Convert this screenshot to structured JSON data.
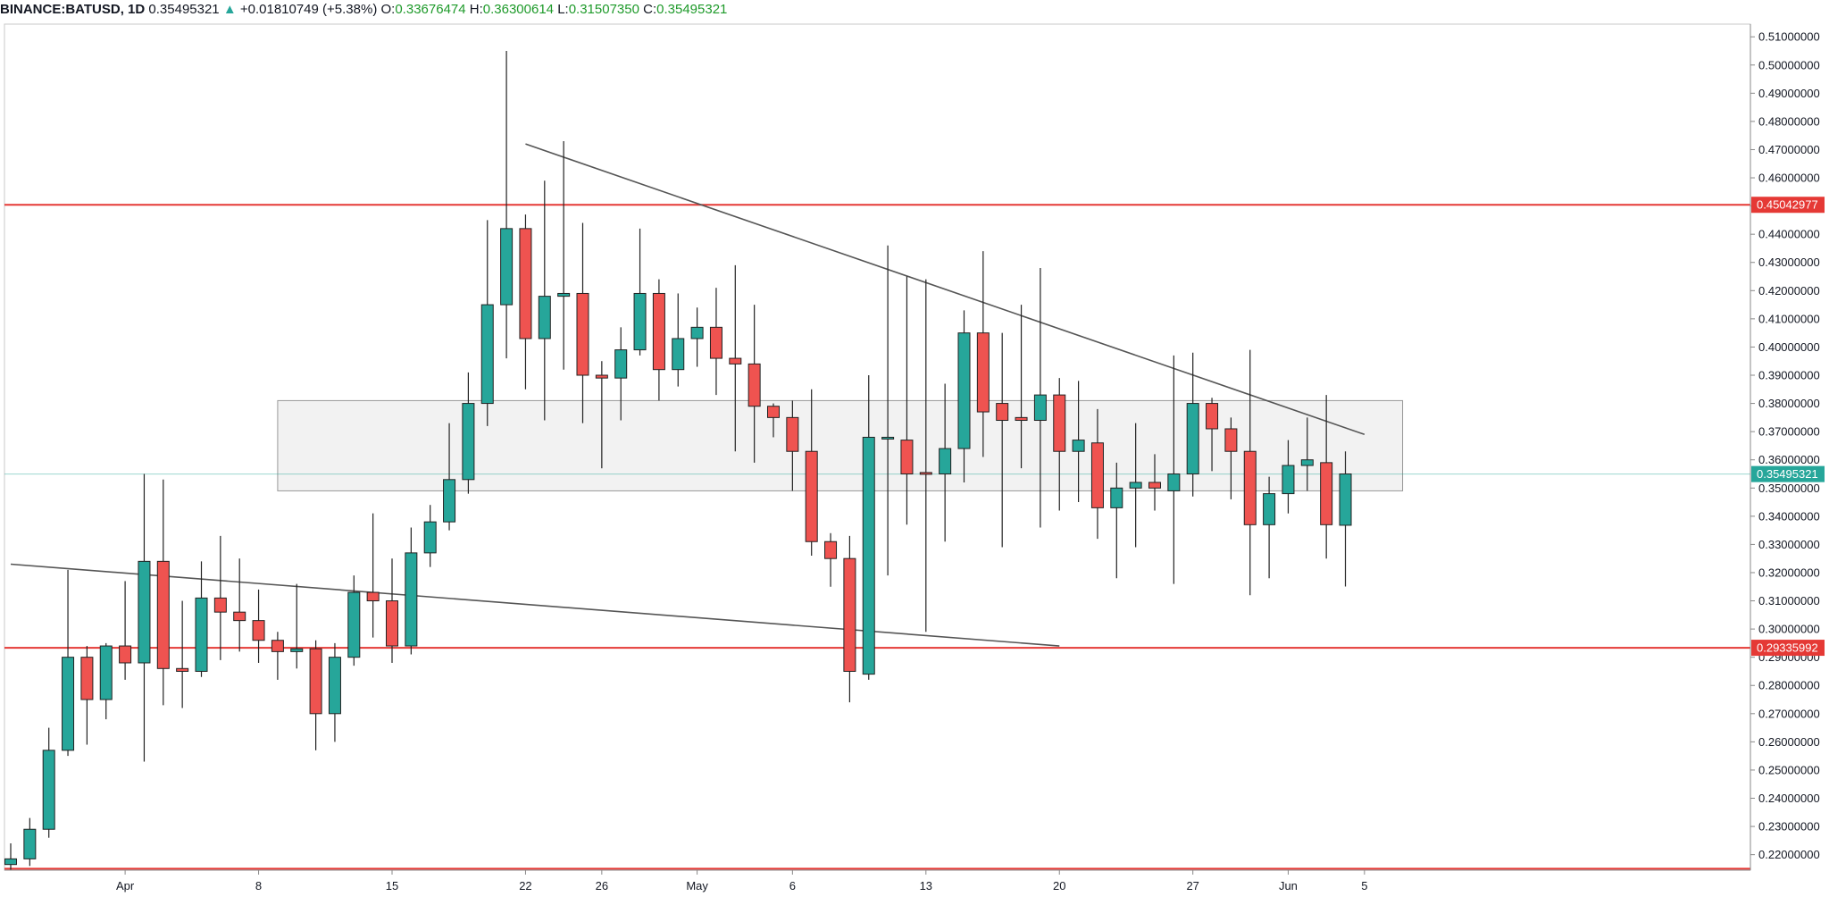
{
  "header": {
    "symbol": "BINANCE:BATUSD, 1D",
    "last": "0.35495321",
    "change_arrow": "▲",
    "change": "+0.01810749 (+5.38%)",
    "o_label": "O:",
    "o_value": "0.33676474",
    "h_label": "H:",
    "h_value": "0.36300614",
    "l_label": "L:",
    "l_value": "0.31507350",
    "c_label": "C:",
    "c_value": "0.35495321"
  },
  "colors": {
    "up": "#26a69a",
    "down": "#ef5350",
    "support_line": "#e53935",
    "trendline": "#555555",
    "zone_fill": "#f2f2f2",
    "zone_border": "#999999",
    "price_line": "#26a69a"
  },
  "chart_data": {
    "type": "candlestick",
    "ylim": [
      0.2145,
      0.5145
    ],
    "y_ticks": [
      "0.22000000",
      "0.23000000",
      "0.24000000",
      "0.25000000",
      "0.26000000",
      "0.27000000",
      "0.28000000",
      "0.29000000",
      "0.30000000",
      "0.31000000",
      "0.32000000",
      "0.33000000",
      "0.34000000",
      "0.35000000",
      "0.36000000",
      "0.37000000",
      "0.38000000",
      "0.39000000",
      "0.40000000",
      "0.41000000",
      "0.42000000",
      "0.43000000",
      "0.44000000",
      "0.45000000",
      "0.46000000",
      "0.47000000",
      "0.48000000",
      "0.49000000",
      "0.50000000",
      "0.51000000"
    ],
    "x_ticks": [
      {
        "label": "Apr",
        "x": "2019-04-01"
      },
      {
        "label": "8",
        "x": "2019-04-08"
      },
      {
        "label": "15",
        "x": "2019-04-15"
      },
      {
        "label": "22",
        "x": "2019-04-22"
      },
      {
        "label": "26",
        "x": "2019-04-26"
      },
      {
        "label": "May",
        "x": "2019-05-01"
      },
      {
        "label": "6",
        "x": "2019-05-06"
      },
      {
        "label": "13",
        "x": "2019-05-13"
      },
      {
        "label": "20",
        "x": "2019-05-20"
      },
      {
        "label": "27",
        "x": "2019-05-27"
      },
      {
        "label": "Jun",
        "x": "2019-06-01"
      },
      {
        "label": "5",
        "x": "2019-06-05"
      }
    ],
    "candles": [
      {
        "date": "2019-03-26",
        "o": 0.2165,
        "h": 0.224,
        "l": 0.214,
        "c": 0.2185
      },
      {
        "date": "2019-03-27",
        "o": 0.2185,
        "h": 0.233,
        "l": 0.216,
        "c": 0.229
      },
      {
        "date": "2019-03-28",
        "o": 0.229,
        "h": 0.265,
        "l": 0.226,
        "c": 0.257
      },
      {
        "date": "2019-03-29",
        "o": 0.257,
        "h": 0.321,
        "l": 0.255,
        "c": 0.29
      },
      {
        "date": "2019-03-30",
        "o": 0.29,
        "h": 0.294,
        "l": 0.259,
        "c": 0.275
      },
      {
        "date": "2019-03-31",
        "o": 0.275,
        "h": 0.295,
        "l": 0.268,
        "c": 0.294
      },
      {
        "date": "2019-04-01",
        "o": 0.294,
        "h": 0.317,
        "l": 0.282,
        "c": 0.288
      },
      {
        "date": "2019-04-02",
        "o": 0.288,
        "h": 0.355,
        "l": 0.253,
        "c": 0.324
      },
      {
        "date": "2019-04-03",
        "o": 0.324,
        "h": 0.353,
        "l": 0.273,
        "c": 0.286
      },
      {
        "date": "2019-04-04",
        "o": 0.286,
        "h": 0.31,
        "l": 0.272,
        "c": 0.285
      },
      {
        "date": "2019-04-05",
        "o": 0.285,
        "h": 0.324,
        "l": 0.283,
        "c": 0.311
      },
      {
        "date": "2019-04-06",
        "o": 0.311,
        "h": 0.333,
        "l": 0.289,
        "c": 0.306
      },
      {
        "date": "2019-04-07",
        "o": 0.306,
        "h": 0.325,
        "l": 0.292,
        "c": 0.303
      },
      {
        "date": "2019-04-08",
        "o": 0.303,
        "h": 0.314,
        "l": 0.288,
        "c": 0.296
      },
      {
        "date": "2019-04-09",
        "o": 0.296,
        "h": 0.299,
        "l": 0.282,
        "c": 0.292
      },
      {
        "date": "2019-04-10",
        "o": 0.292,
        "h": 0.316,
        "l": 0.286,
        "c": 0.293
      },
      {
        "date": "2019-04-11",
        "o": 0.293,
        "h": 0.296,
        "l": 0.257,
        "c": 0.27
      },
      {
        "date": "2019-04-12",
        "o": 0.27,
        "h": 0.295,
        "l": 0.26,
        "c": 0.29
      },
      {
        "date": "2019-04-13",
        "o": 0.29,
        "h": 0.319,
        "l": 0.287,
        "c": 0.313
      },
      {
        "date": "2019-04-14",
        "o": 0.313,
        "h": 0.341,
        "l": 0.297,
        "c": 0.31
      },
      {
        "date": "2019-04-15",
        "o": 0.31,
        "h": 0.325,
        "l": 0.288,
        "c": 0.294
      },
      {
        "date": "2019-04-16",
        "o": 0.294,
        "h": 0.336,
        "l": 0.291,
        "c": 0.327
      },
      {
        "date": "2019-04-17",
        "o": 0.327,
        "h": 0.344,
        "l": 0.322,
        "c": 0.338
      },
      {
        "date": "2019-04-18",
        "o": 0.338,
        "h": 0.373,
        "l": 0.335,
        "c": 0.353
      },
      {
        "date": "2019-04-19",
        "o": 0.353,
        "h": 0.391,
        "l": 0.348,
        "c": 0.38
      },
      {
        "date": "2019-04-20",
        "o": 0.38,
        "h": 0.445,
        "l": 0.372,
        "c": 0.415
      },
      {
        "date": "2019-04-21",
        "o": 0.415,
        "h": 0.505,
        "l": 0.396,
        "c": 0.442
      },
      {
        "date": "2019-04-22",
        "o": 0.442,
        "h": 0.447,
        "l": 0.385,
        "c": 0.403
      },
      {
        "date": "2019-04-23",
        "o": 0.403,
        "h": 0.459,
        "l": 0.374,
        "c": 0.418
      },
      {
        "date": "2019-04-24",
        "o": 0.418,
        "h": 0.473,
        "l": 0.392,
        "c": 0.419
      },
      {
        "date": "2019-04-25",
        "o": 0.419,
        "h": 0.444,
        "l": 0.373,
        "c": 0.39
      },
      {
        "date": "2019-04-26",
        "o": 0.39,
        "h": 0.395,
        "l": 0.357,
        "c": 0.389
      },
      {
        "date": "2019-04-27",
        "o": 0.389,
        "h": 0.407,
        "l": 0.374,
        "c": 0.399
      },
      {
        "date": "2019-04-28",
        "o": 0.399,
        "h": 0.442,
        "l": 0.397,
        "c": 0.419
      },
      {
        "date": "2019-04-29",
        "o": 0.419,
        "h": 0.424,
        "l": 0.381,
        "c": 0.392
      },
      {
        "date": "2019-04-30",
        "o": 0.392,
        "h": 0.419,
        "l": 0.386,
        "c": 0.403
      },
      {
        "date": "2019-05-01",
        "o": 0.403,
        "h": 0.414,
        "l": 0.393,
        "c": 0.407
      },
      {
        "date": "2019-05-02",
        "o": 0.407,
        "h": 0.421,
        "l": 0.383,
        "c": 0.396
      },
      {
        "date": "2019-05-03",
        "o": 0.396,
        "h": 0.429,
        "l": 0.363,
        "c": 0.394
      },
      {
        "date": "2019-05-04",
        "o": 0.394,
        "h": 0.415,
        "l": 0.359,
        "c": 0.379
      },
      {
        "date": "2019-05-05",
        "o": 0.379,
        "h": 0.38,
        "l": 0.368,
        "c": 0.375
      },
      {
        "date": "2019-05-06",
        "o": 0.375,
        "h": 0.381,
        "l": 0.349,
        "c": 0.363
      },
      {
        "date": "2019-05-07",
        "o": 0.363,
        "h": 0.385,
        "l": 0.326,
        "c": 0.331
      },
      {
        "date": "2019-05-08",
        "o": 0.331,
        "h": 0.334,
        "l": 0.315,
        "c": 0.325
      },
      {
        "date": "2019-05-09",
        "o": 0.325,
        "h": 0.333,
        "l": 0.274,
        "c": 0.285
      },
      {
        "date": "2019-05-10",
        "o": 0.284,
        "h": 0.39,
        "l": 0.282,
        "c": 0.368
      },
      {
        "date": "2019-05-11",
        "o": 0.3675,
        "h": 0.436,
        "l": 0.319,
        "c": 0.368
      },
      {
        "date": "2019-05-12",
        "o": 0.367,
        "h": 0.425,
        "l": 0.337,
        "c": 0.355
      },
      {
        "date": "2019-05-13",
        "o": 0.3555,
        "h": 0.424,
        "l": 0.299,
        "c": 0.355
      },
      {
        "date": "2019-05-14",
        "o": 0.355,
        "h": 0.387,
        "l": 0.331,
        "c": 0.364
      },
      {
        "date": "2019-05-15",
        "o": 0.364,
        "h": 0.413,
        "l": 0.352,
        "c": 0.405
      },
      {
        "date": "2019-05-16",
        "o": 0.405,
        "h": 0.434,
        "l": 0.361,
        "c": 0.377
      },
      {
        "date": "2019-05-17",
        "o": 0.38,
        "h": 0.405,
        "l": 0.329,
        "c": 0.374
      },
      {
        "date": "2019-05-18",
        "o": 0.375,
        "h": 0.415,
        "l": 0.357,
        "c": 0.374
      },
      {
        "date": "2019-05-19",
        "o": 0.374,
        "h": 0.428,
        "l": 0.336,
        "c": 0.383
      },
      {
        "date": "2019-05-20",
        "o": 0.383,
        "h": 0.389,
        "l": 0.342,
        "c": 0.363
      },
      {
        "date": "2019-05-21",
        "o": 0.363,
        "h": 0.388,
        "l": 0.345,
        "c": 0.367
      },
      {
        "date": "2019-05-22",
        "o": 0.366,
        "h": 0.378,
        "l": 0.332,
        "c": 0.343
      },
      {
        "date": "2019-05-23",
        "o": 0.343,
        "h": 0.359,
        "l": 0.318,
        "c": 0.35
      },
      {
        "date": "2019-05-24",
        "o": 0.35,
        "h": 0.373,
        "l": 0.329,
        "c": 0.352
      },
      {
        "date": "2019-05-25",
        "o": 0.352,
        "h": 0.362,
        "l": 0.342,
        "c": 0.35
      },
      {
        "date": "2019-05-26",
        "o": 0.349,
        "h": 0.397,
        "l": 0.316,
        "c": 0.355
      },
      {
        "date": "2019-05-27",
        "o": 0.355,
        "h": 0.398,
        "l": 0.347,
        "c": 0.38
      },
      {
        "date": "2019-05-28",
        "o": 0.38,
        "h": 0.382,
        "l": 0.356,
        "c": 0.371
      },
      {
        "date": "2019-05-29",
        "o": 0.371,
        "h": 0.375,
        "l": 0.346,
        "c": 0.363
      },
      {
        "date": "2019-05-30",
        "o": 0.363,
        "h": 0.399,
        "l": 0.312,
        "c": 0.337
      },
      {
        "date": "2019-05-31",
        "o": 0.337,
        "h": 0.354,
        "l": 0.318,
        "c": 0.348
      },
      {
        "date": "2019-06-01",
        "o": 0.348,
        "h": 0.367,
        "l": 0.341,
        "c": 0.358
      },
      {
        "date": "2019-06-02",
        "o": 0.358,
        "h": 0.375,
        "l": 0.349,
        "c": 0.36
      },
      {
        "date": "2019-06-03",
        "o": 0.359,
        "h": 0.383,
        "l": 0.325,
        "c": 0.337
      },
      {
        "date": "2019-06-04",
        "o": 0.3368,
        "h": 0.363,
        "l": 0.3151,
        "c": 0.355
      }
    ],
    "horizontal_lines": [
      {
        "price": 0.45042977,
        "label": "0.45042977"
      },
      {
        "price": 0.29335992,
        "label": "0.29335992"
      },
      {
        "price": 0.215
      }
    ],
    "current_price": {
      "price": 0.35495321,
      "label": "0.35495321"
    },
    "zone": {
      "x1": "2019-04-09",
      "x2": "2019-06-07",
      "y_low": 0.349,
      "y_high": 0.381
    },
    "trendlines": [
      {
        "x1": "2019-03-26",
        "y1": 0.323,
        "x2": "2019-05-20",
        "y2": 0.294
      },
      {
        "x1": "2019-04-22",
        "y1": 0.472,
        "x2": "2019-06-05",
        "y2": 0.369
      }
    ]
  }
}
